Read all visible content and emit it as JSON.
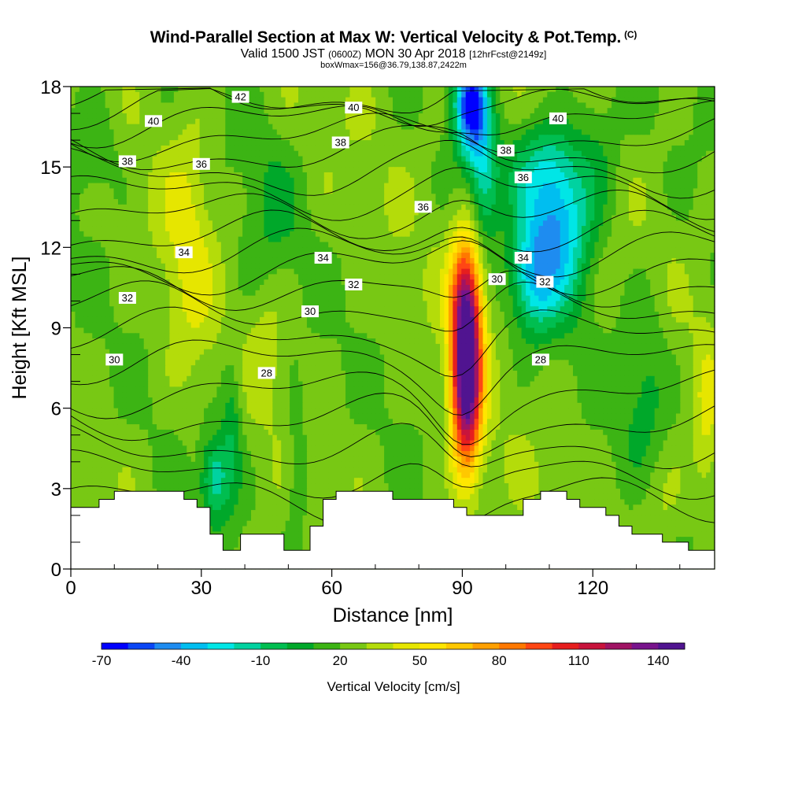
{
  "title": "Wind-Parallel Section at Max W: Vertical Velocity & Pot.Temp.",
  "title_mark": "(C)",
  "subtitle_main_a": "Valid 1500 JST",
  "subtitle_small_a": "(0600Z)",
  "subtitle_main_b": "MON 30 Apr 2018",
  "subtitle_small_b": "[12hrFcst@2149z]",
  "subtitle2": "boxWmax=156@36.79,138.87,2422m",
  "chart_data": {
    "type": "heatmap",
    "xlabel": "Distance [nm]",
    "ylabel": "Height [Kft MSL]",
    "xlim": [
      0,
      148
    ],
    "ylim": [
      0,
      18
    ],
    "x_ticks": [
      "0",
      "30",
      "60",
      "90",
      "120"
    ],
    "x_tick_values": [
      0,
      30,
      60,
      90,
      120
    ],
    "y_ticks": [
      "0",
      "3",
      "6",
      "9",
      "12",
      "15",
      "18"
    ],
    "y_tick_values": [
      0,
      3,
      6,
      9,
      12,
      15,
      18
    ],
    "colorbar": {
      "label": "Vertical Velocity [cm/s]",
      "ticks": [
        "-70",
        "-40",
        "-10",
        "20",
        "50",
        "80",
        "110",
        "140"
      ],
      "colors": [
        "#0000ff",
        "#0a46f5",
        "#1e8cf0",
        "#00bef0",
        "#00e6e6",
        "#00d2a0",
        "#00be50",
        "#00a82a",
        "#3cb414",
        "#78c814",
        "#b4dc0a",
        "#e6e600",
        "#ffe600",
        "#ffc800",
        "#ffa000",
        "#ff7800",
        "#ff4614",
        "#e61e1e",
        "#c8143c",
        "#a01464",
        "#78148c",
        "#501490"
      ]
    },
    "w_field_cm_s": {
      "background": 15,
      "features": [
        {
          "x": 91,
          "y": 7.5,
          "peak": 156,
          "note": "updraft core"
        },
        {
          "x": 92,
          "y": 17,
          "peak": -70,
          "note": "downdraft aloft"
        },
        {
          "x": 112,
          "y": 12.5,
          "peak": -45
        },
        {
          "x": 33,
          "y": 3.2,
          "peak": -25
        },
        {
          "x": 120,
          "y": 15.5,
          "peak": -10
        }
      ]
    },
    "theta_contour_labels": [
      {
        "text": "42",
        "x": 39,
        "y": 17.6
      },
      {
        "text": "40",
        "x": 19,
        "y": 16.7
      },
      {
        "text": "40",
        "x": 65,
        "y": 17.2
      },
      {
        "text": "40",
        "x": 112,
        "y": 16.8
      },
      {
        "text": "38",
        "x": 13,
        "y": 15.2
      },
      {
        "text": "38",
        "x": 62,
        "y": 15.9
      },
      {
        "text": "38",
        "x": 100,
        "y": 15.6
      },
      {
        "text": "36",
        "x": 30,
        "y": 15.1
      },
      {
        "text": "36",
        "x": 81,
        "y": 13.5
      },
      {
        "text": "36",
        "x": 104,
        "y": 14.6
      },
      {
        "text": "34",
        "x": 26,
        "y": 11.8
      },
      {
        "text": "34",
        "x": 58,
        "y": 11.6
      },
      {
        "text": "34",
        "x": 104,
        "y": 11.6
      },
      {
        "text": "32",
        "x": 13,
        "y": 10.1
      },
      {
        "text": "32",
        "x": 65,
        "y": 10.6
      },
      {
        "text": "32",
        "x": 109,
        "y": 10.7
      },
      {
        "text": "30",
        "x": 10,
        "y": 7.8
      },
      {
        "text": "30",
        "x": 55,
        "y": 9.6
      },
      {
        "text": "30",
        "x": 98,
        "y": 10.8
      },
      {
        "text": "28",
        "x": 45,
        "y": 7.3
      },
      {
        "text": "28",
        "x": 108,
        "y": 7.8
      }
    ],
    "terrain_kft": [
      {
        "x": 0,
        "h": 2.3
      },
      {
        "x": 6.5,
        "h": 2.6
      },
      {
        "x": 10,
        "h": 2.9
      },
      {
        "x": 26,
        "h": 2.6
      },
      {
        "x": 29,
        "h": 2.3
      },
      {
        "x": 32,
        "h": 1.3
      },
      {
        "x": 35,
        "h": 0.7
      },
      {
        "x": 39,
        "h": 1.3
      },
      {
        "x": 49,
        "h": 0.7
      },
      {
        "x": 55,
        "h": 1.6
      },
      {
        "x": 58,
        "h": 2.6
      },
      {
        "x": 61,
        "h": 2.9
      },
      {
        "x": 74,
        "h": 2.6
      },
      {
        "x": 88,
        "h": 2.3
      },
      {
        "x": 91,
        "h": 2.0
      },
      {
        "x": 104,
        "h": 2.6
      },
      {
        "x": 108,
        "h": 2.9
      },
      {
        "x": 114,
        "h": 2.6
      },
      {
        "x": 117,
        "h": 2.3
      },
      {
        "x": 123,
        "h": 2.0
      },
      {
        "x": 126,
        "h": 1.6
      },
      {
        "x": 129,
        "h": 1.3
      },
      {
        "x": 136,
        "h": 1.0
      },
      {
        "x": 142,
        "h": 0.7
      },
      {
        "x": 148,
        "h": 0.7
      }
    ]
  }
}
